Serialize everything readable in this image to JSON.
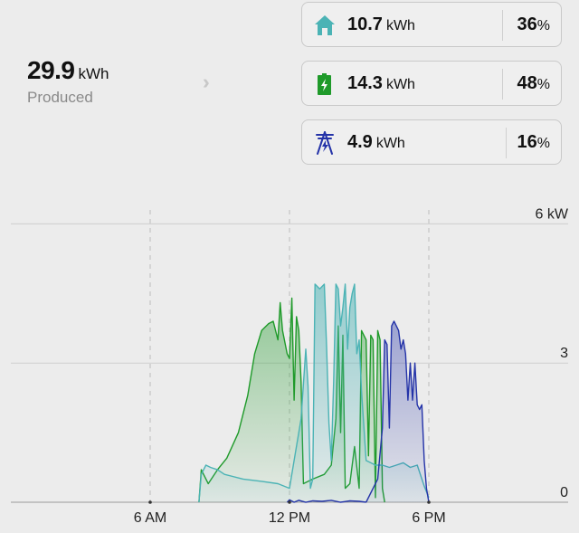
{
  "summary": {
    "produced_value": "29.9",
    "produced_unit": "kWh",
    "produced_label": "Produced"
  },
  "breakdown": [
    {
      "name": "home",
      "icon": "house-icon",
      "value": "10.7",
      "unit": "kWh",
      "percent": "36",
      "percent_sign": "%",
      "color": "#4bb3b5"
    },
    {
      "name": "battery",
      "icon": "battery-icon",
      "value": "14.3",
      "unit": "kWh",
      "percent": "48",
      "percent_sign": "%",
      "color": "#1f9a2a"
    },
    {
      "name": "grid",
      "icon": "power-tower-icon",
      "value": "4.9",
      "unit": "kWh",
      "percent": "16",
      "percent_sign": "%",
      "color": "#2433a8"
    }
  ],
  "chart_data": {
    "type": "area",
    "x_unit": "hours",
    "xlim": [
      0,
      24
    ],
    "ylim": [
      0,
      6.3
    ],
    "x_ticks": [
      {
        "x": 6,
        "label": "6 AM"
      },
      {
        "x": 12,
        "label": "12 PM"
      },
      {
        "x": 18,
        "label": "6 PM"
      }
    ],
    "y_ticks": [
      {
        "y": 6,
        "label": "6 kW"
      },
      {
        "y": 3,
        "label": "3"
      },
      {
        "y": 0,
        "label": "0"
      }
    ],
    "grid": true,
    "series": [
      {
        "key": "battery",
        "color": "#1f9a2a",
        "points": [
          [
            8.1,
            0
          ],
          [
            8.2,
            0.7
          ],
          [
            8.3,
            0.6
          ],
          [
            8.5,
            0.4
          ],
          [
            8.9,
            0.7
          ],
          [
            9.3,
            0.95
          ],
          [
            9.8,
            1.5
          ],
          [
            10.2,
            2.3
          ],
          [
            10.5,
            3.2
          ],
          [
            10.8,
            3.7
          ],
          [
            11.1,
            3.85
          ],
          [
            11.3,
            3.9
          ],
          [
            11.5,
            3.5
          ],
          [
            11.6,
            4.3
          ],
          [
            11.7,
            3.7
          ],
          [
            11.9,
            3.2
          ],
          [
            12.0,
            3.1
          ],
          [
            12.1,
            4.4
          ],
          [
            12.2,
            2.2
          ],
          [
            12.3,
            4.0
          ],
          [
            12.4,
            3.7
          ],
          [
            12.5,
            2.6
          ],
          [
            12.6,
            0.4
          ],
          [
            13.0,
            0.5
          ],
          [
            13.5,
            0.6
          ],
          [
            13.8,
            0.8
          ],
          [
            14.0,
            1.8
          ],
          [
            14.1,
            3.8
          ],
          [
            14.2,
            1.5
          ],
          [
            14.3,
            3.6
          ],
          [
            14.4,
            0.3
          ],
          [
            14.6,
            0.4
          ],
          [
            14.8,
            1.2
          ],
          [
            15.0,
            0.3
          ],
          [
            15.1,
            3.7
          ],
          [
            15.3,
            3.5
          ],
          [
            15.4,
            1.0
          ],
          [
            15.5,
            3.6
          ],
          [
            15.6,
            3.5
          ],
          [
            15.7,
            0.1
          ],
          [
            15.8,
            3.7
          ],
          [
            15.9,
            3.5
          ],
          [
            16.0,
            0.3
          ],
          [
            16.1,
            0.0
          ]
        ]
      },
      {
        "key": "home",
        "color": "#4bb3b5",
        "points": [
          [
            8.1,
            0
          ],
          [
            8.2,
            0.6
          ],
          [
            8.4,
            0.8
          ],
          [
            8.6,
            0.75
          ],
          [
            8.9,
            0.7
          ],
          [
            9.2,
            0.6
          ],
          [
            10,
            0.5
          ],
          [
            10.8,
            0.45
          ],
          [
            11.5,
            0.4
          ],
          [
            12.0,
            0.3
          ],
          [
            12.2,
            0.9
          ],
          [
            12.5,
            1.8
          ],
          [
            12.7,
            3.3
          ],
          [
            12.8,
            2.5
          ],
          [
            12.9,
            0.3
          ],
          [
            13.0,
            0.5
          ],
          [
            13.1,
            4.7
          ],
          [
            13.3,
            4.6
          ],
          [
            13.5,
            4.7
          ],
          [
            13.6,
            3.3
          ],
          [
            13.7,
            1.7
          ],
          [
            13.8,
            0.9
          ],
          [
            13.9,
            2.6
          ],
          [
            14.0,
            4.7
          ],
          [
            14.1,
            4.6
          ],
          [
            14.2,
            3.8
          ],
          [
            14.3,
            4.2
          ],
          [
            14.4,
            4.7
          ],
          [
            14.5,
            3.3
          ],
          [
            14.6,
            4.2
          ],
          [
            14.7,
            4.5
          ],
          [
            14.8,
            4.7
          ],
          [
            14.9,
            3.2
          ],
          [
            15.0,
            3.5
          ],
          [
            15.1,
            2.4
          ],
          [
            15.3,
            0.9
          ],
          [
            15.5,
            0.85
          ],
          [
            15.7,
            0.8
          ],
          [
            16.0,
            0.8
          ],
          [
            16.3,
            0.75
          ],
          [
            16.6,
            0.8
          ],
          [
            16.9,
            0.85
          ],
          [
            17.2,
            0.75
          ],
          [
            17.5,
            0.8
          ],
          [
            17.8,
            0.35
          ],
          [
            18.0,
            0.1
          ]
        ]
      },
      {
        "key": "grid",
        "color": "#2433a8",
        "points": [
          [
            15.3,
            0.0
          ],
          [
            15.6,
            0.3
          ],
          [
            15.8,
            0.5
          ],
          [
            16.0,
            1.6
          ],
          [
            16.1,
            3.5
          ],
          [
            16.2,
            3.4
          ],
          [
            16.3,
            1.6
          ],
          [
            16.4,
            3.8
          ],
          [
            16.5,
            3.9
          ],
          [
            16.6,
            3.8
          ],
          [
            16.7,
            3.7
          ],
          [
            16.8,
            3.3
          ],
          [
            16.9,
            3.5
          ],
          [
            17.0,
            3.2
          ],
          [
            17.1,
            2.2
          ],
          [
            17.2,
            3.0
          ],
          [
            17.3,
            2.2
          ],
          [
            17.4,
            3.0
          ],
          [
            17.5,
            2.1
          ],
          [
            17.6,
            2.0
          ],
          [
            17.7,
            2.1
          ],
          [
            17.8,
            0.9
          ],
          [
            17.9,
            0.3
          ],
          [
            18.0,
            0.0
          ]
        ]
      }
    ],
    "baseline_noise": [
      [
        11.9,
        0.0
      ],
      [
        12.0,
        0.05
      ],
      [
        12.2,
        0.0
      ],
      [
        12.4,
        0.04
      ],
      [
        12.7,
        0.0
      ],
      [
        13.0,
        0.03
      ],
      [
        13.4,
        0.02
      ],
      [
        13.8,
        0.04
      ],
      [
        14.2,
        0.0
      ],
      [
        14.6,
        0.03
      ],
      [
        15.0,
        0.02
      ],
      [
        15.3,
        0.0
      ]
    ]
  }
}
